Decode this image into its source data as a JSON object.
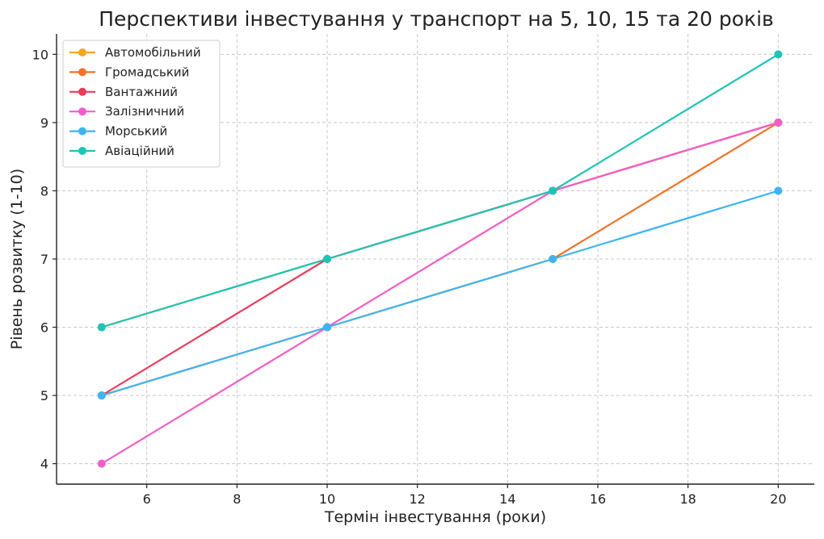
{
  "chart_data": {
    "type": "line",
    "title": "Перспективи інвестування у транспорт на 5, 10, 15 та 20 років",
    "xlabel": "Термін інвестування (роки)",
    "ylabel": "Рівень розвитку (1-10)",
    "x": [
      5,
      10,
      15,
      20
    ],
    "xlim": [
      4.0,
      20.8
    ],
    "ylim": [
      3.7,
      10.3
    ],
    "xticks": [
      6,
      8,
      10,
      12,
      14,
      16,
      18,
      20
    ],
    "yticks": [
      4,
      5,
      6,
      7,
      8,
      9,
      10
    ],
    "grid": true,
    "legend_position": "top-left",
    "series": [
      {
        "name": "Автомобільний",
        "color": "#f5a623",
        "values": [
          6,
          7,
          8,
          9
        ]
      },
      {
        "name": "Громадський",
        "color": "#f07427",
        "values": [
          5,
          6,
          7,
          9
        ]
      },
      {
        "name": "Вантажний",
        "color": "#ea3b5a",
        "values": [
          5,
          7,
          8,
          9
        ]
      },
      {
        "name": "Залізничний",
        "color": "#f25ec7",
        "values": [
          4,
          6,
          8,
          9
        ]
      },
      {
        "name": "Морський",
        "color": "#3db4f0",
        "values": [
          5,
          6,
          7,
          8
        ]
      },
      {
        "name": "Авіаційний",
        "color": "#1ec4b4",
        "values": [
          6,
          7,
          8,
          10
        ]
      }
    ]
  }
}
